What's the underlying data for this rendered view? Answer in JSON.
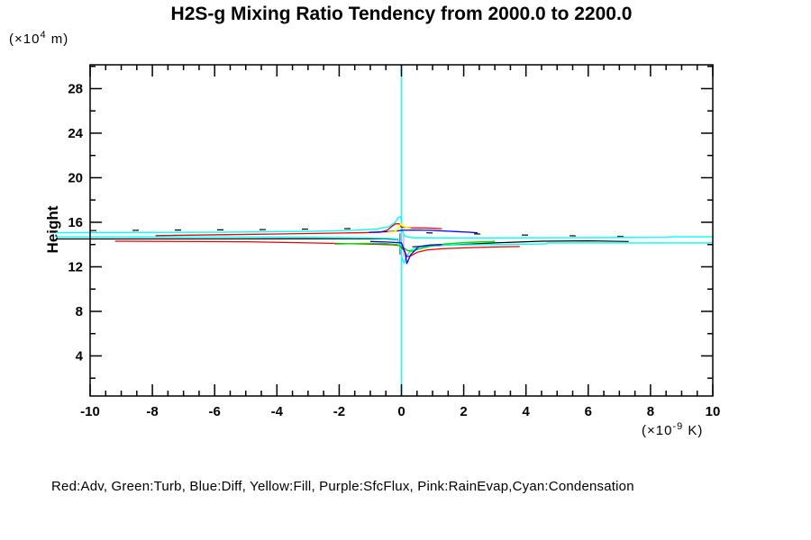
{
  "title": "H2S-g Mixing Ratio Tendency from 2000.0 to 2200.0",
  "y_axis_label": "Height",
  "y_unit": {
    "prefix": "(×10",
    "exp": "4",
    "suffix": " m)"
  },
  "x_unit": {
    "prefix": "(×10",
    "exp": "-9",
    "suffix": " K)"
  },
  "legend_text": "Red:Adv, Green:Turb, Blue:Diff, Yellow:Fill, Purple:SfcFlux, Pink:RainEvap,Cyan:Condensation",
  "colors": {
    "red": "#ee0000",
    "green": "#00dd00",
    "blue": "#0000ff",
    "yellow": "#ffff00",
    "purple": "#aa33cc",
    "pink": "#ff88cc",
    "cyan": "#00ffff",
    "axis": "#000000"
  },
  "chart_data": {
    "type": "line",
    "title": "H2S-g Mixing Ratio Tendency from 2000.0 to 2200.0",
    "xlabel": "(x10^-9 K)",
    "ylabel": "Height (x10^4 m)",
    "grid": false,
    "legend_position": "bottom-text-line",
    "x_axis": {
      "min": -10,
      "max": 10,
      "major_ticks": [
        -10,
        -8,
        -6,
        -4,
        -2,
        0,
        2,
        4,
        6,
        8,
        10
      ],
      "major_tick_labels": [
        "-10",
        "-8",
        "-6",
        "-4",
        "-2",
        "0",
        "2",
        "4",
        "6",
        "8",
        "10"
      ],
      "minor_step": 0.5
    },
    "y_axis": {
      "min": 0.4,
      "max": 30.14,
      "major_ticks": [
        4,
        8,
        12,
        16,
        20,
        24,
        28
      ],
      "major_tick_labels": [
        "4",
        "8",
        "12",
        "16",
        "20",
        "24",
        "28"
      ],
      "minor_step": 2
    },
    "series": [
      {
        "name": "zero-line-condensation-vertical",
        "color": "#00ffff",
        "width": 1.6,
        "points": [
          [
            0,
            0.4
          ],
          [
            0,
            30.14
          ]
        ]
      },
      {
        "name": "SfcFlux",
        "color": "#aa33cc",
        "width": 1.2,
        "points": [
          [
            -0.05,
            15.0
          ],
          [
            -0.05,
            13.1
          ]
        ]
      },
      {
        "name": "RainEvap",
        "color": "#ff88cc",
        "width": 1.2,
        "points": [
          [
            0.07,
            15.05
          ],
          [
            0.07,
            12.95
          ]
        ]
      },
      {
        "name": "contour-black-dash-left",
        "color": "#000000",
        "width": 1.2,
        "dash": "7 40",
        "points": [
          [
            -10,
            15.25
          ],
          [
            -4,
            15.35
          ],
          [
            -1.2,
            15.45
          ],
          [
            -0.5,
            15.52
          ]
        ]
      },
      {
        "name": "contour-black-dash-right",
        "color": "#000000",
        "width": 1.2,
        "dash": "7 46",
        "points": [
          [
            0.8,
            15.05
          ],
          [
            4,
            14.85
          ],
          [
            7.6,
            14.7
          ]
        ]
      },
      {
        "name": "contour-black-mid",
        "color": "#000000",
        "width": 1.2,
        "points": [
          [
            -11.1,
            14.5
          ],
          [
            -4,
            14.51
          ],
          [
            -0.6,
            14.52
          ],
          [
            -0.1,
            14.45
          ]
        ]
      },
      {
        "name": "contour-black-right",
        "color": "#000000",
        "width": 1.2,
        "points": [
          [
            0.35,
            13.8
          ],
          [
            1.5,
            13.95
          ],
          [
            3,
            14.15
          ],
          [
            4.5,
            14.3
          ],
          [
            6,
            14.33
          ],
          [
            7.3,
            14.28
          ]
        ]
      },
      {
        "name": "Condensation-upper",
        "color": "#00ffff",
        "width": 1.4,
        "points": [
          [
            -11.1,
            15.08
          ],
          [
            -6,
            15.1
          ],
          [
            -3,
            15.18
          ],
          [
            -1.5,
            15.28
          ],
          [
            -0.8,
            15.4
          ],
          [
            -0.4,
            15.6
          ],
          [
            -0.2,
            16.0
          ],
          [
            -0.1,
            16.45
          ],
          [
            -0.02,
            16.5
          ],
          [
            0.02,
            15.3
          ],
          [
            0.1,
            14.75
          ],
          [
            0.3,
            14.62
          ],
          [
            1,
            14.6
          ],
          [
            3,
            14.6
          ],
          [
            6,
            14.62
          ],
          [
            8.5,
            14.65
          ],
          [
            8.7,
            14.7
          ],
          [
            10,
            14.7
          ]
        ]
      },
      {
        "name": "Condensation-lower",
        "color": "#00ffff",
        "width": 1.4,
        "points": [
          [
            -11.1,
            14.68
          ],
          [
            -4,
            14.66
          ],
          [
            -1,
            14.6
          ],
          [
            -0.4,
            14.55
          ],
          [
            -0.15,
            14.5
          ],
          [
            -0.05,
            14.0
          ],
          [
            0.02,
            12.7
          ],
          [
            0.08,
            12.35
          ],
          [
            0.15,
            12.9
          ],
          [
            0.3,
            13.5
          ],
          [
            0.6,
            13.85
          ],
          [
            1.2,
            13.95
          ],
          [
            3.3,
            14.0
          ],
          [
            4.6,
            14.05
          ],
          [
            4.7,
            14.15
          ],
          [
            9.9,
            14.15
          ],
          [
            10,
            14.2
          ]
        ]
      },
      {
        "name": "Adv-upper",
        "color": "#ee0000",
        "width": 1.3,
        "points": [
          [
            -7.9,
            14.8
          ],
          [
            -4,
            14.95
          ],
          [
            -1.5,
            15.05
          ],
          [
            -0.7,
            15.1
          ],
          [
            -0.45,
            15.3
          ],
          [
            -0.3,
            15.65
          ],
          [
            -0.2,
            15.85
          ],
          [
            -0.08,
            15.88
          ],
          [
            0.0,
            15.55
          ],
          [
            0.3,
            15.5
          ],
          [
            0.8,
            15.48
          ],
          [
            1.3,
            15.42
          ]
        ]
      },
      {
        "name": "Adv-lower",
        "color": "#ee0000",
        "width": 1.3,
        "points": [
          [
            -9.2,
            14.3
          ],
          [
            -5,
            14.25
          ],
          [
            -2,
            14.1
          ],
          [
            -0.8,
            14.02
          ],
          [
            -0.3,
            13.98
          ],
          [
            -0.05,
            13.9
          ],
          [
            0.08,
            13.5
          ],
          [
            0.18,
            12.9
          ],
          [
            0.3,
            12.98
          ],
          [
            0.5,
            13.3
          ],
          [
            0.8,
            13.5
          ],
          [
            1.3,
            13.62
          ],
          [
            2,
            13.7
          ],
          [
            3,
            13.78
          ],
          [
            3.8,
            13.82
          ]
        ]
      },
      {
        "name": "Turb",
        "color": "#00dd00",
        "width": 1.5,
        "points": [
          [
            -2.15,
            14.05
          ],
          [
            -1.2,
            14.1
          ],
          [
            -0.5,
            14.08
          ],
          [
            -0.15,
            14.0
          ],
          [
            0.05,
            13.75
          ],
          [
            0.2,
            13.45
          ],
          [
            0.35,
            13.4
          ],
          [
            0.55,
            13.6
          ],
          [
            0.9,
            13.85
          ],
          [
            1.4,
            14.05
          ],
          [
            2.2,
            14.2
          ],
          [
            3.0,
            14.28
          ]
        ]
      },
      {
        "name": "Diff-upper",
        "color": "#0000ff",
        "width": 1.3,
        "points": [
          [
            -1.05,
            15.1
          ],
          [
            -0.5,
            15.15
          ],
          [
            -0.2,
            15.2
          ],
          [
            0,
            15.28
          ],
          [
            0.4,
            15.3
          ],
          [
            0.9,
            15.28
          ],
          [
            1.5,
            15.2
          ],
          [
            2.1,
            15.12
          ],
          [
            2.45,
            15.05
          ]
        ]
      },
      {
        "name": "Diff-lower",
        "color": "#0000ff",
        "width": 1.3,
        "points": [
          [
            -1.0,
            14.28
          ],
          [
            -0.4,
            14.22
          ],
          [
            0,
            14.15
          ],
          [
            0.12,
            13.3
          ],
          [
            0.17,
            12.3
          ],
          [
            0.3,
            13.1
          ],
          [
            0.55,
            13.8
          ],
          [
            0.9,
            13.95
          ],
          [
            1.3,
            14.0
          ]
        ]
      },
      {
        "name": "Fill",
        "color": "#ffff00",
        "width": 1.5,
        "points": [
          [
            -0.45,
            15.1
          ],
          [
            -0.2,
            15.15
          ],
          [
            -0.1,
            15.5
          ],
          [
            -0.02,
            15.85
          ],
          [
            0.08,
            15.6
          ],
          [
            0.2,
            15.5
          ],
          [
            0.3,
            15.45
          ]
        ]
      }
    ]
  }
}
